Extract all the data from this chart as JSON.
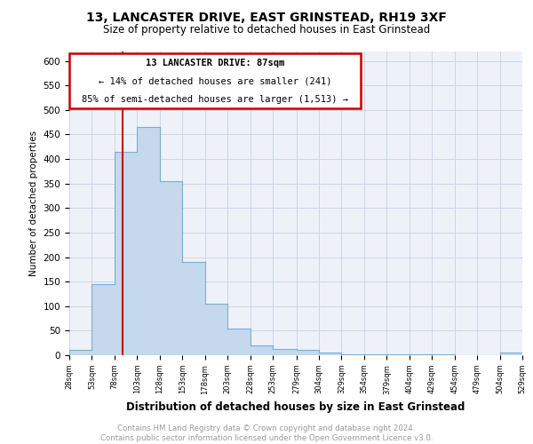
{
  "title": "13, LANCASTER DRIVE, EAST GRINSTEAD, RH19 3XF",
  "subtitle": "Size of property relative to detached houses in East Grinstead",
  "xlabel": "Distribution of detached houses by size in East Grinstead",
  "ylabel": "Number of detached properties",
  "footer_line1": "Contains HM Land Registry data © Crown copyright and database right 2024.",
  "footer_line2": "Contains public sector information licensed under the Open Government Licence v3.0.",
  "annotation_line1": "13 LANCASTER DRIVE: 87sqm",
  "annotation_line2": "← 14% of detached houses are smaller (241)",
  "annotation_line3": "85% of semi-detached houses are larger (1,513) →",
  "property_size_sqm": 87,
  "bin_edges": [
    28,
    53,
    78,
    103,
    128,
    153,
    178,
    203,
    228,
    253,
    279,
    304,
    329,
    354,
    379,
    404,
    429,
    454,
    479,
    504,
    529
  ],
  "bar_heights": [
    10,
    145,
    415,
    465,
    355,
    190,
    105,
    55,
    20,
    12,
    10,
    5,
    2,
    2,
    1,
    1,
    1,
    0,
    0,
    5
  ],
  "bar_color": "#c5d8ec",
  "bar_edge_color": "#7aadd4",
  "vline_color": "#cc0000",
  "annotation_box_color": "#cc0000",
  "grid_color": "#ccd6e8",
  "background_color": "#eef2f8",
  "ylim": [
    0,
    620
  ],
  "ytick_step": 50,
  "xtick_labels": [
    "28sqm",
    "53sqm",
    "78sqm",
    "103sqm",
    "128sqm",
    "153sqm",
    "178sqm",
    "203sqm",
    "228sqm",
    "253sqm",
    "279sqm",
    "304sqm",
    "329sqm",
    "354sqm",
    "379sqm",
    "404sqm",
    "429sqm",
    "454sqm",
    "479sqm",
    "504sqm",
    "529sqm"
  ]
}
